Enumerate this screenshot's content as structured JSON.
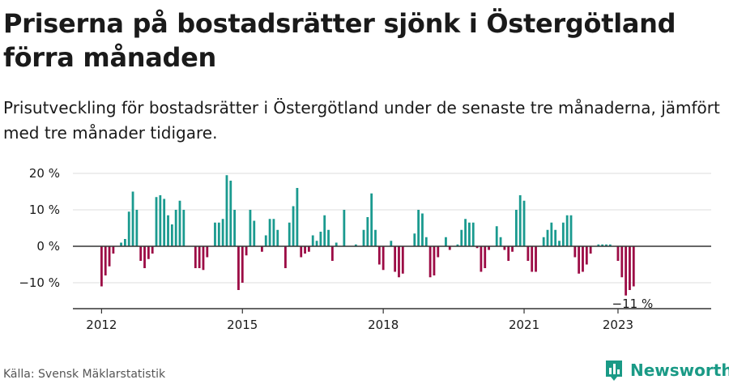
{
  "title": "Priserna på bostadsrätter sjönk i Östergötland förra månaden",
  "subtitle": "Prisutveckling för bostadsrätter i Östergötland under de senaste tre månaderna, jämfört med tre månader tidigare.",
  "source": "Källa: Svensk Mäklarstatistik",
  "brand": {
    "name": "Newsworthy",
    "icon": "bar-chart-logo-icon",
    "color": "#1a9a86"
  },
  "colors": {
    "positive": "#1a9a8f",
    "negative": "#9c0b45",
    "grid": "#dddddd",
    "axis": "#333333"
  },
  "chart_data": {
    "type": "bar",
    "x_start": "2012-01",
    "x_ticks": [
      "2012",
      "2015",
      "2018",
      "2021",
      "2023"
    ],
    "y_ticks": [
      "20 %",
      "10 %",
      "0 %",
      "−10 %"
    ],
    "ylim": [
      -17,
      20
    ],
    "annotation": "−11 %",
    "grid": true,
    "values": [
      -11,
      -8,
      -5.5,
      -2,
      0,
      1,
      2,
      9.5,
      15,
      10,
      -4,
      -6,
      -3.5,
      -2,
      13.5,
      14,
      13,
      8.5,
      6,
      10,
      12.5,
      10,
      0,
      0,
      -6,
      -6,
      -6.5,
      -3,
      0,
      6.5,
      6.5,
      7.5,
      19.5,
      18,
      10,
      -12,
      -10,
      -2.5,
      10,
      7,
      0,
      -1.5,
      3,
      7.5,
      7.5,
      4.5,
      0,
      -6,
      6.5,
      11,
      16,
      -3,
      -2,
      -1.5,
      3,
      1.5,
      4,
      8.5,
      4.5,
      -4,
      1,
      0,
      10,
      0,
      0,
      0.5,
      0,
      4.5,
      8,
      14.5,
      4.5,
      -5,
      -6.5,
      0,
      1.5,
      -7,
      -8.5,
      -7.5,
      0,
      0,
      3.5,
      10,
      9,
      2.5,
      -8.5,
      -8,
      -3,
      0,
      2.5,
      -1,
      0,
      0.5,
      4.5,
      7.5,
      6.5,
      6.5,
      -0.5,
      -7,
      -6,
      -1,
      0,
      5.5,
      2.5,
      -1,
      -4,
      -1.5,
      10,
      14,
      12.5,
      -4,
      -7,
      -7,
      0,
      2.5,
      4.5,
      6.5,
      4.5,
      1.5,
      6.5,
      8.5,
      8.5,
      -3,
      -7.5,
      -7,
      -5,
      -2,
      0,
      0.5,
      0.5,
      0.5,
      0.5,
      0,
      -4,
      -8.5,
      -13.5,
      -12,
      -11
    ]
  }
}
